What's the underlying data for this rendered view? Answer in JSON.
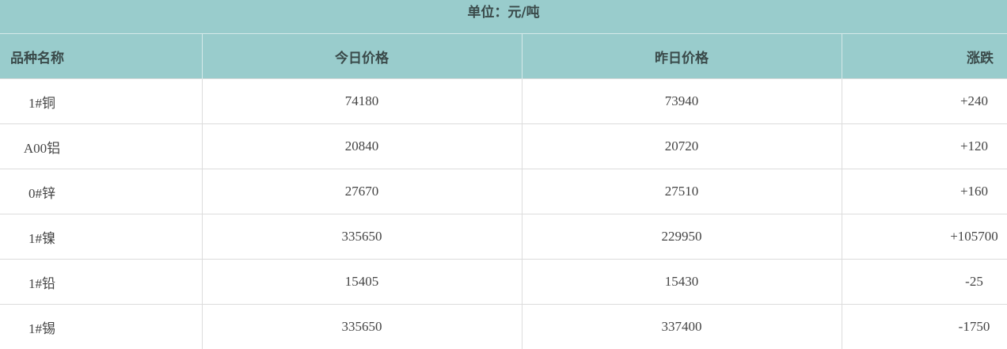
{
  "unit_label": "单位：元/吨",
  "headers": [
    "品种名称",
    "今日价格",
    "昨日价格",
    "涨跌"
  ],
  "rows": [
    {
      "name": "1#铜",
      "today": "74180",
      "yesterday": "73940",
      "change": "+240"
    },
    {
      "name": "A00铝",
      "today": "20840",
      "yesterday": "20720",
      "change": "+120"
    },
    {
      "name": "0#锌",
      "today": "27670",
      "yesterday": "27510",
      "change": "+160"
    },
    {
      "name": "1#镍",
      "today": "335650",
      "yesterday": "229950",
      "change": "+105700"
    },
    {
      "name": "1#铅",
      "today": "15405",
      "yesterday": "15430",
      "change": "-25"
    },
    {
      "name": "1#锡",
      "today": "335650",
      "yesterday": "337400",
      "change": "-1750"
    }
  ],
  "colors": {
    "header_bg": "#99cccc"
  }
}
